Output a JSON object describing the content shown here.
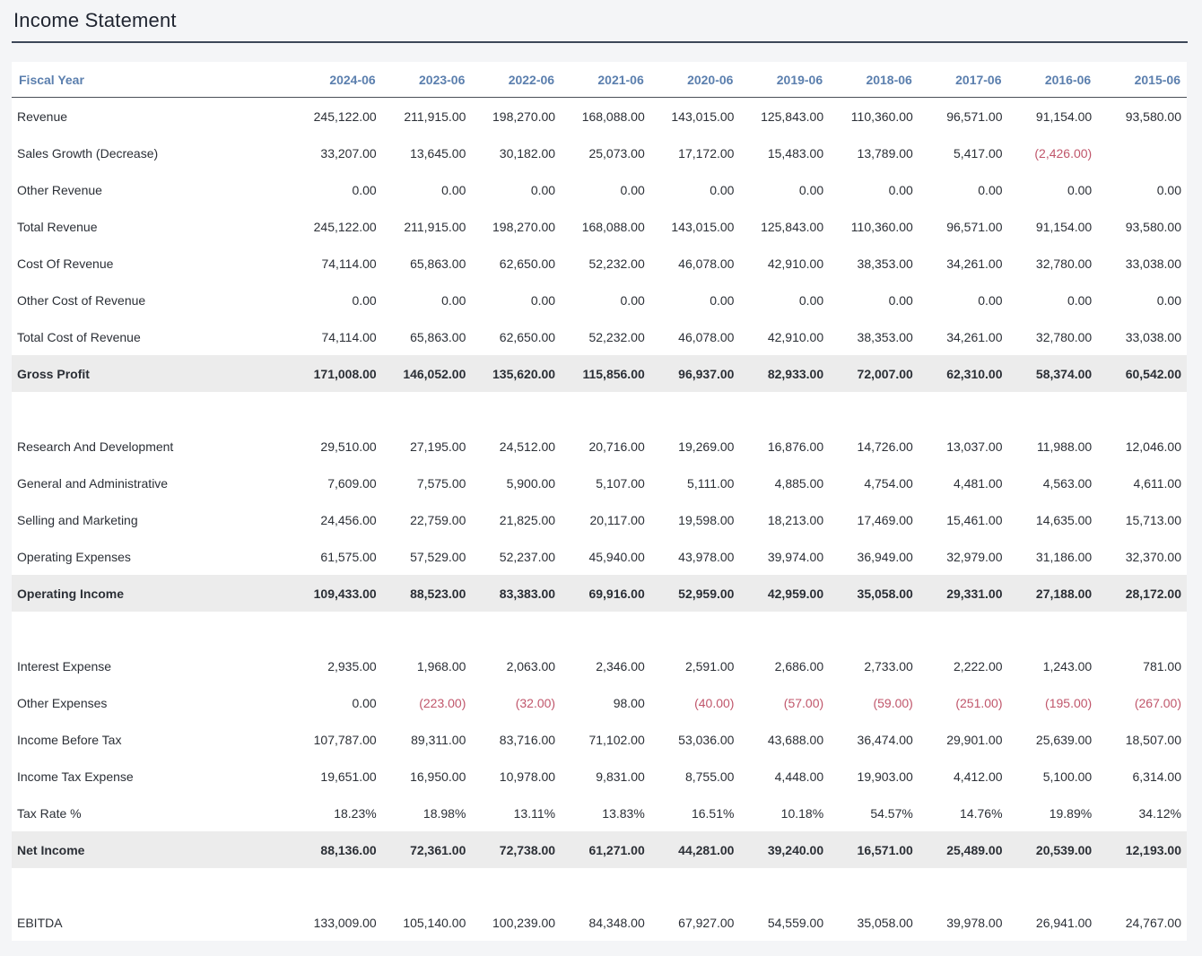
{
  "title": "Income Statement",
  "header": {
    "label": "Fiscal Year",
    "years": [
      "2024-06",
      "2023-06",
      "2022-06",
      "2021-06",
      "2020-06",
      "2019-06",
      "2018-06",
      "2017-06",
      "2016-06",
      "2015-06"
    ]
  },
  "rows": [
    {
      "label": "Revenue",
      "values": [
        "245,122.00",
        "211,915.00",
        "198,270.00",
        "168,088.00",
        "143,015.00",
        "125,843.00",
        "110,360.00",
        "96,571.00",
        "91,154.00",
        "93,580.00"
      ]
    },
    {
      "label": "Sales Growth (Decrease)",
      "values": [
        "33,207.00",
        "13,645.00",
        "30,182.00",
        "25,073.00",
        "17,172.00",
        "15,483.00",
        "13,789.00",
        "5,417.00",
        "(2,426.00)",
        ""
      ]
    },
    {
      "label": "Other Revenue",
      "values": [
        "0.00",
        "0.00",
        "0.00",
        "0.00",
        "0.00",
        "0.00",
        "0.00",
        "0.00",
        "0.00",
        "0.00"
      ]
    },
    {
      "label": "Total Revenue",
      "values": [
        "245,122.00",
        "211,915.00",
        "198,270.00",
        "168,088.00",
        "143,015.00",
        "125,843.00",
        "110,360.00",
        "96,571.00",
        "91,154.00",
        "93,580.00"
      ]
    },
    {
      "label": "Cost Of Revenue",
      "values": [
        "74,114.00",
        "65,863.00",
        "62,650.00",
        "52,232.00",
        "46,078.00",
        "42,910.00",
        "38,353.00",
        "34,261.00",
        "32,780.00",
        "33,038.00"
      ]
    },
    {
      "label": "Other Cost of Revenue",
      "values": [
        "0.00",
        "0.00",
        "0.00",
        "0.00",
        "0.00",
        "0.00",
        "0.00",
        "0.00",
        "0.00",
        "0.00"
      ]
    },
    {
      "label": "Total Cost of Revenue",
      "values": [
        "74,114.00",
        "65,863.00",
        "62,650.00",
        "52,232.00",
        "46,078.00",
        "42,910.00",
        "38,353.00",
        "34,261.00",
        "32,780.00",
        "33,038.00"
      ]
    },
    {
      "label": "Gross Profit",
      "total": true,
      "values": [
        "171,008.00",
        "146,052.00",
        "135,620.00",
        "115,856.00",
        "96,937.00",
        "82,933.00",
        "72,007.00",
        "62,310.00",
        "58,374.00",
        "60,542.00"
      ]
    },
    {
      "spacer": true
    },
    {
      "label": "Research And Development",
      "values": [
        "29,510.00",
        "27,195.00",
        "24,512.00",
        "20,716.00",
        "19,269.00",
        "16,876.00",
        "14,726.00",
        "13,037.00",
        "11,988.00",
        "12,046.00"
      ]
    },
    {
      "label": "General and Administrative",
      "values": [
        "7,609.00",
        "7,575.00",
        "5,900.00",
        "5,107.00",
        "5,111.00",
        "4,885.00",
        "4,754.00",
        "4,481.00",
        "4,563.00",
        "4,611.00"
      ]
    },
    {
      "label": "Selling and Marketing",
      "values": [
        "24,456.00",
        "22,759.00",
        "21,825.00",
        "20,117.00",
        "19,598.00",
        "18,213.00",
        "17,469.00",
        "15,461.00",
        "14,635.00",
        "15,713.00"
      ]
    },
    {
      "label": "Operating Expenses",
      "values": [
        "61,575.00",
        "57,529.00",
        "52,237.00",
        "45,940.00",
        "43,978.00",
        "39,974.00",
        "36,949.00",
        "32,979.00",
        "31,186.00",
        "32,370.00"
      ]
    },
    {
      "label": "Operating Income",
      "total": true,
      "values": [
        "109,433.00",
        "88,523.00",
        "83,383.00",
        "69,916.00",
        "52,959.00",
        "42,959.00",
        "35,058.00",
        "29,331.00",
        "27,188.00",
        "28,172.00"
      ]
    },
    {
      "spacer": true
    },
    {
      "label": "Interest Expense",
      "values": [
        "2,935.00",
        "1,968.00",
        "2,063.00",
        "2,346.00",
        "2,591.00",
        "2,686.00",
        "2,733.00",
        "2,222.00",
        "1,243.00",
        "781.00"
      ]
    },
    {
      "label": "Other Expenses",
      "values": [
        "0.00",
        "(223.00)",
        "(32.00)",
        "98.00",
        "(40.00)",
        "(57.00)",
        "(59.00)",
        "(251.00)",
        "(195.00)",
        "(267.00)"
      ]
    },
    {
      "label": "Income Before Tax",
      "values": [
        "107,787.00",
        "89,311.00",
        "83,716.00",
        "71,102.00",
        "53,036.00",
        "43,688.00",
        "36,474.00",
        "29,901.00",
        "25,639.00",
        "18,507.00"
      ]
    },
    {
      "label": "Income Tax Expense",
      "values": [
        "19,651.00",
        "16,950.00",
        "10,978.00",
        "9,831.00",
        "8,755.00",
        "4,448.00",
        "19,903.00",
        "4,412.00",
        "5,100.00",
        "6,314.00"
      ]
    },
    {
      "label": "Tax Rate %",
      "values": [
        "18.23%",
        "18.98%",
        "13.11%",
        "13.83%",
        "16.51%",
        "10.18%",
        "54.57%",
        "14.76%",
        "19.89%",
        "34.12%"
      ]
    },
    {
      "label": "Net Income",
      "total": true,
      "values": [
        "88,136.00",
        "72,361.00",
        "72,738.00",
        "61,271.00",
        "44,281.00",
        "39,240.00",
        "16,571.00",
        "25,489.00",
        "20,539.00",
        "12,193.00"
      ]
    },
    {
      "spacer": true
    },
    {
      "label": "EBITDA",
      "values": [
        "133,009.00",
        "105,140.00",
        "100,239.00",
        "84,348.00",
        "67,927.00",
        "54,559.00",
        "35,058.00",
        "39,978.00",
        "26,941.00",
        "24,767.00"
      ]
    }
  ],
  "colors": {
    "header_text": "#5b7fae",
    "negative_text": "#c0566b",
    "total_row_bg": "#ececec",
    "title_rule": "#3d4758"
  }
}
